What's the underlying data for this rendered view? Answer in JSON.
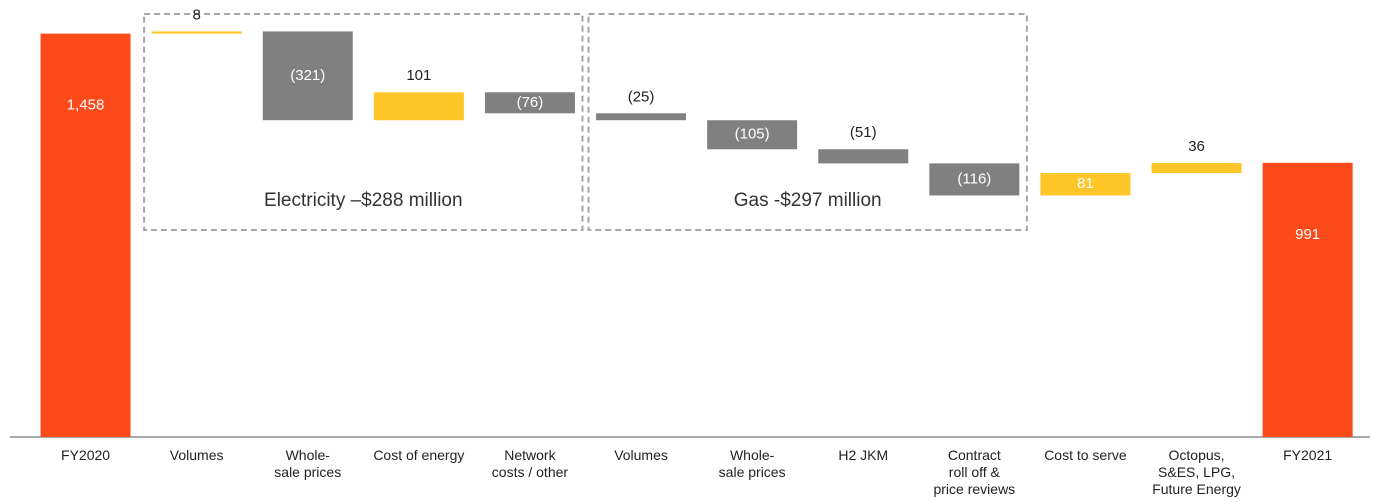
{
  "chart_data": {
    "type": "waterfall",
    "categories": [
      "FY2020",
      "Volumes",
      "Whole-\nsale prices",
      "Cost of energy",
      "Network\ncosts / other",
      "Volumes",
      "Whole-\nsale prices",
      "H2 JKM",
      "Contract\nroll off &\nprice reviews",
      "Cost to serve",
      "Octopus,\nS&ES, LPG,\nFuture Energy",
      "FY2021"
    ],
    "values": [
      1458,
      8,
      -321,
      101,
      -76,
      -25,
      -105,
      -51,
      -116,
      81,
      36,
      991
    ],
    "value_labels": [
      "1,458",
      "8",
      "(321)",
      "101",
      "(76)",
      "(25)",
      "(105)",
      "(51)",
      "(116)",
      "81",
      "36",
      "991"
    ],
    "bar_kinds": [
      "total",
      "delta",
      "delta",
      "delta",
      "delta",
      "delta",
      "delta",
      "delta",
      "delta",
      "delta",
      "delta",
      "total"
    ],
    "label_positions": [
      "inside",
      "above",
      "inside",
      "above",
      "inside",
      "above",
      "inside",
      "above",
      "inside",
      "inside",
      "above",
      "inside"
    ],
    "colors": {
      "total": "#fc4a1a",
      "increase": "#ffc629",
      "decrease": "#808080"
    },
    "ylim": [
      0,
      1500
    ],
    "groups": [
      {
        "label": "Electricity –$288 million",
        "start": 1,
        "end": 4
      },
      {
        "label": "Gas -$297 million",
        "start": 5,
        "end": 8
      }
    ]
  }
}
